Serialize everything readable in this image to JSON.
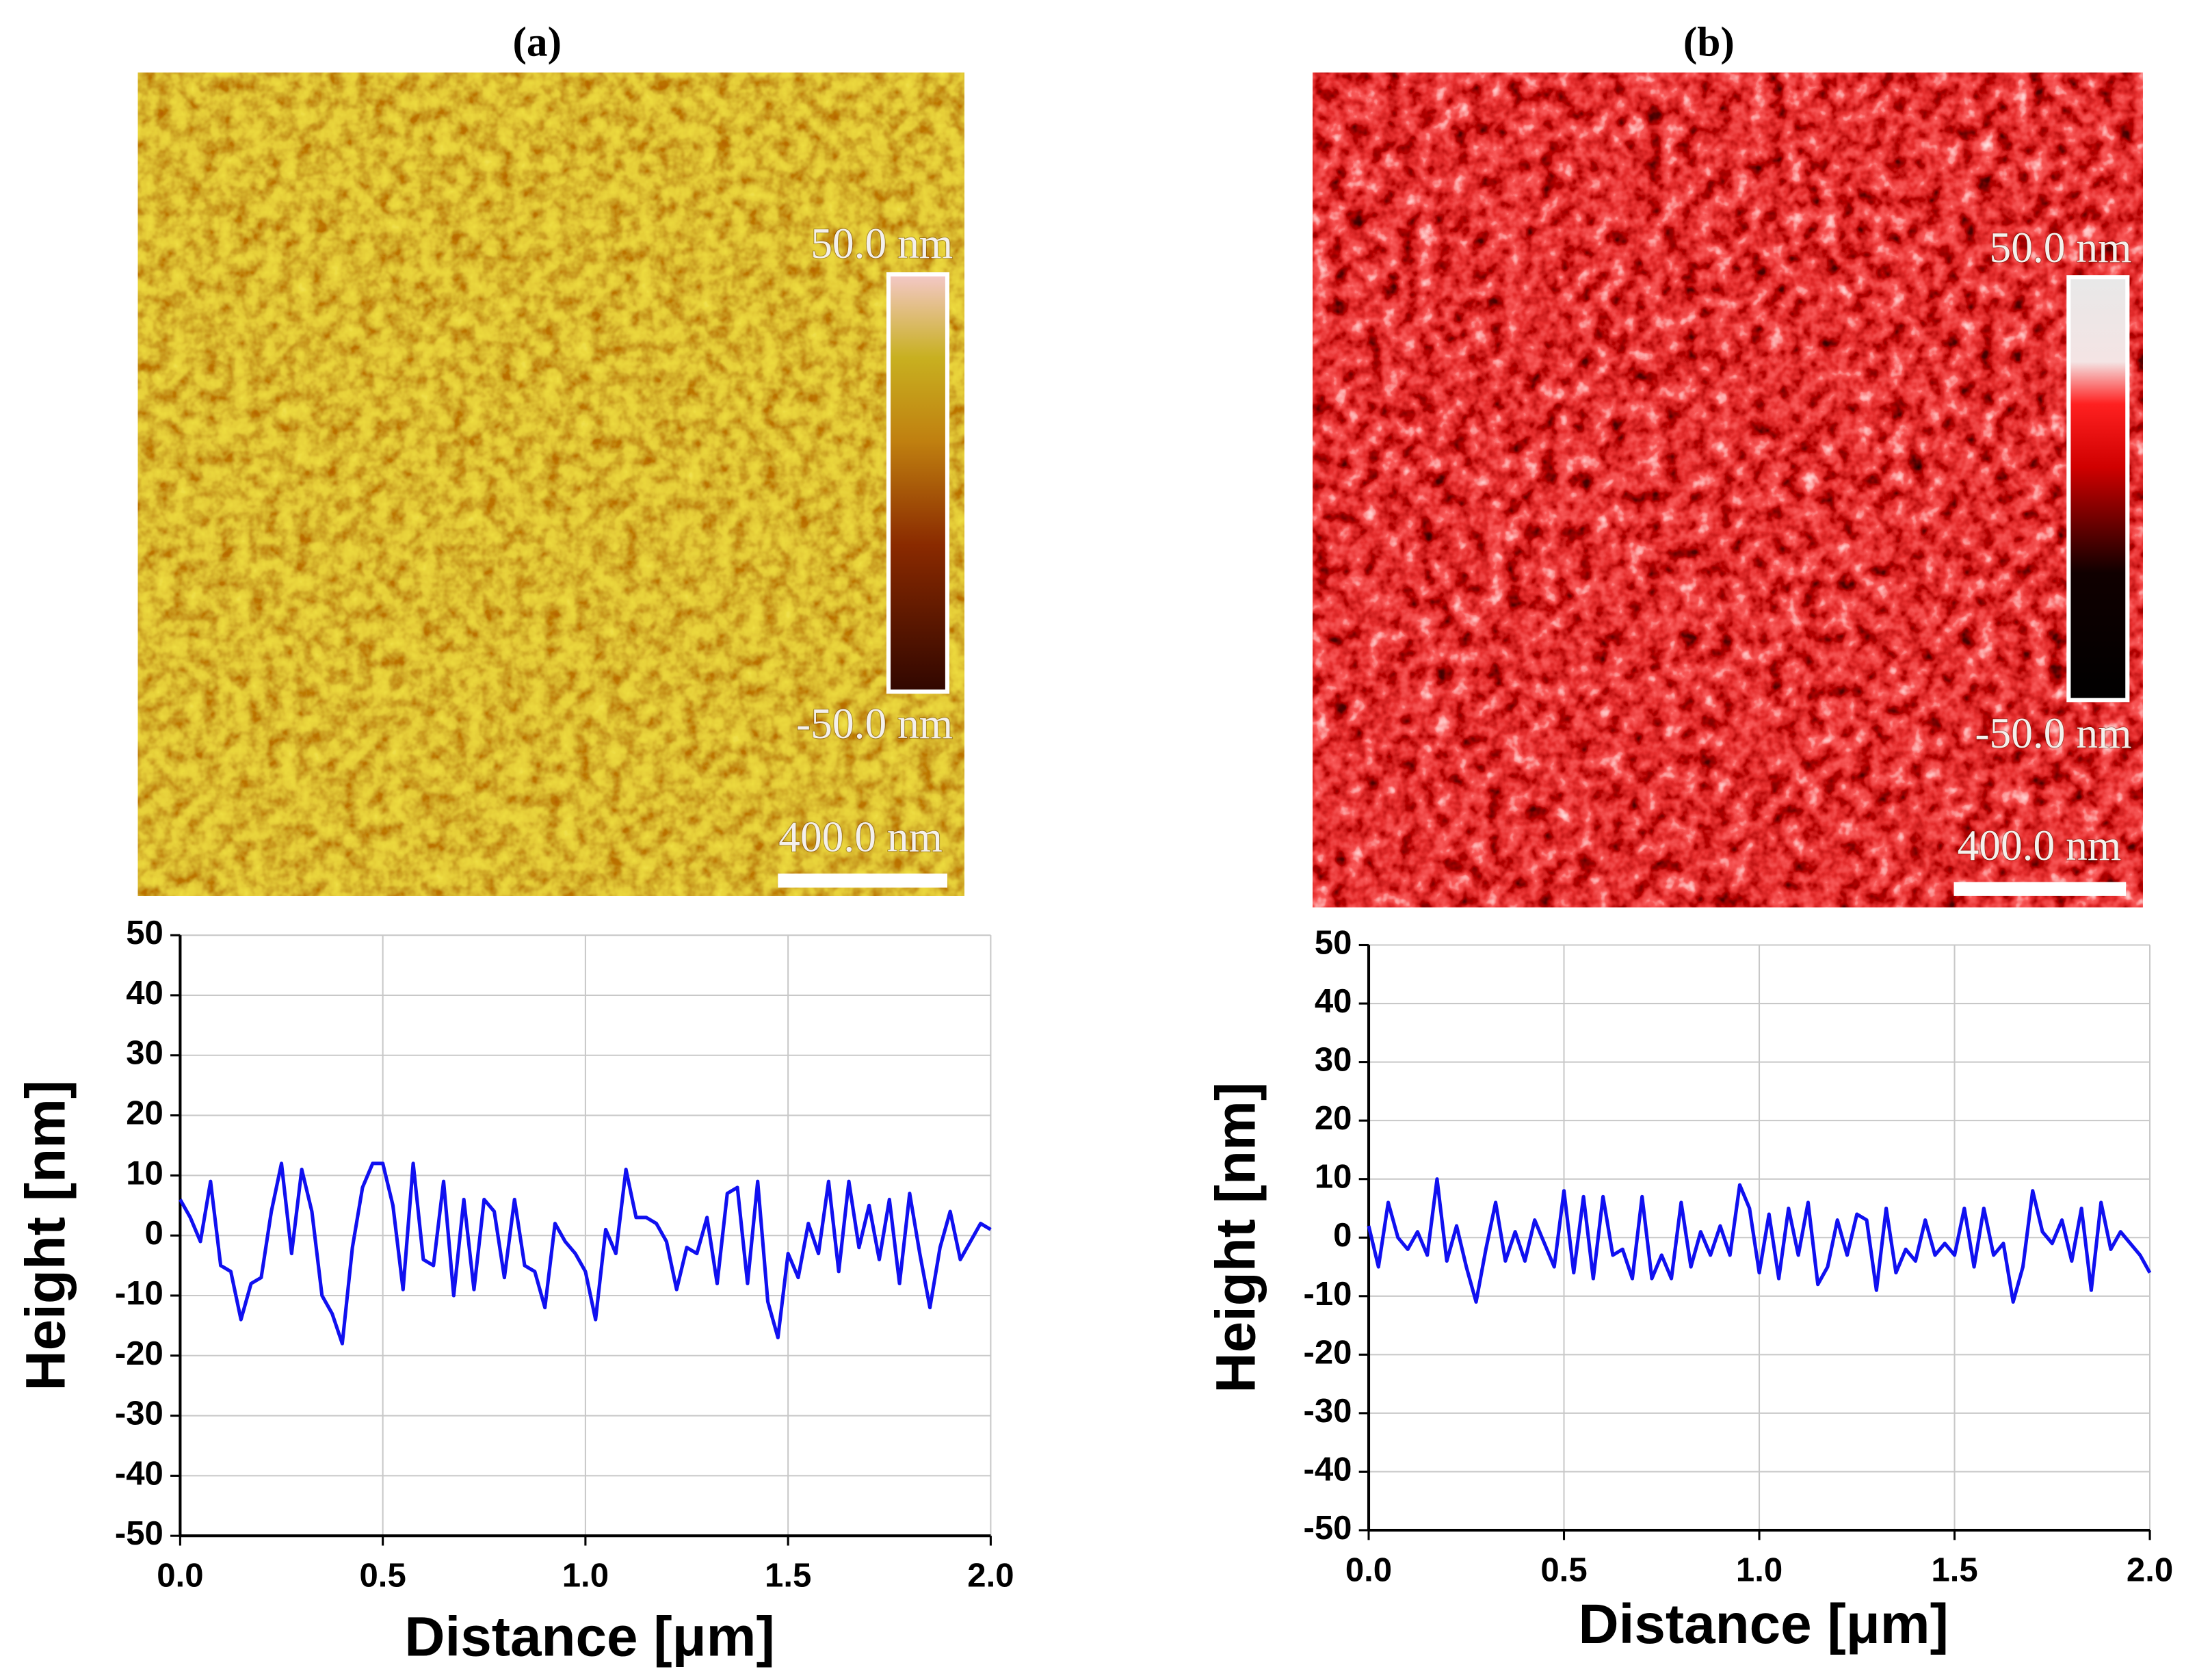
{
  "images": [
    {
      "label": "(a)",
      "scale_max": "50.0 nm",
      "scale_min": "-50.0 nm",
      "scale_bar": "400.0 nm"
    },
    {
      "label": "(b)",
      "scale_max": "50.0 nm",
      "scale_min": "-50.0 nm",
      "scale_bar": "400.0 nm"
    }
  ],
  "chart_data": [
    {
      "type": "line",
      "xlabel": "Distance [μm]",
      "ylabel": "Height [nm]",
      "color": "#1010f0",
      "grid": true,
      "xlim": [
        0,
        2
      ],
      "ylim": [
        -50,
        50
      ],
      "xticks": [
        {
          "value": 0,
          "label": "0.0"
        },
        0.5,
        {
          "value": 1,
          "label": "1.0"
        },
        1.5,
        {
          "value": 2,
          "label": "2.0"
        }
      ],
      "yticks": [
        -50,
        -40,
        -30,
        -20,
        -10,
        0,
        10,
        20,
        30,
        40,
        50
      ],
      "x": [
        0,
        0.025,
        0.05,
        0.075,
        0.1,
        0.125,
        0.15,
        0.175,
        0.2,
        0.225,
        0.25,
        0.275,
        0.3,
        0.325,
        0.35,
        0.375,
        0.4,
        0.425,
        0.45,
        0.475,
        0.5,
        0.525,
        0.55,
        0.575,
        0.6,
        0.625,
        0.65,
        0.675,
        0.7,
        0.725,
        0.75,
        0.775,
        0.8,
        0.825,
        0.85,
        0.875,
        0.9,
        0.925,
        0.95,
        0.975,
        1,
        1.025,
        1.05,
        1.075,
        1.1,
        1.125,
        1.15,
        1.175,
        1.2,
        1.225,
        1.25,
        1.275,
        1.3,
        1.325,
        1.35,
        1.375,
        1.4,
        1.425,
        1.45,
        1.475,
        1.5,
        1.525,
        1.55,
        1.575,
        1.6,
        1.625,
        1.65,
        1.675,
        1.7,
        1.725,
        1.75,
        1.775,
        1.8,
        1.825,
        1.85,
        1.875,
        1.9,
        1.925,
        1.95,
        1.975,
        2
      ],
      "values": [
        6,
        3,
        -1,
        9,
        -5,
        -6,
        -14,
        -8,
        -7,
        4,
        12,
        -3,
        11,
        4,
        -10,
        -13,
        -18,
        -2,
        8,
        12,
        12,
        5,
        -9,
        12,
        -4,
        -5,
        9,
        -10,
        6,
        -9,
        6,
        4,
        -7,
        6,
        -5,
        -6,
        -12,
        2,
        -1,
        -3,
        -6,
        -14,
        1,
        -3,
        11,
        3,
        3,
        2,
        -1,
        -9,
        -2,
        -3,
        3,
        -8,
        7,
        8,
        -8,
        9,
        -11,
        -17,
        -3,
        -7,
        2,
        -3,
        9,
        -6,
        9,
        -2,
        5,
        -4,
        6,
        -8,
        7,
        -3,
        -12,
        -2,
        4,
        -4,
        -1,
        2,
        1
      ]
    },
    {
      "type": "line",
      "xlabel": "Distance [μm]",
      "ylabel": "Height [nm]",
      "color": "#1010f0",
      "grid": true,
      "xlim": [
        0,
        2
      ],
      "ylim": [
        -50,
        50
      ],
      "xticks": [
        {
          "value": 0,
          "label": "0.0"
        },
        0.5,
        {
          "value": 1,
          "label": "1.0"
        },
        1.5,
        {
          "value": 2,
          "label": "2.0"
        }
      ],
      "yticks": [
        -50,
        -40,
        -30,
        -20,
        -10,
        0,
        10,
        20,
        30,
        40,
        50
      ],
      "x": [
        0,
        0.025,
        0.05,
        0.075,
        0.1,
        0.125,
        0.15,
        0.175,
        0.2,
        0.225,
        0.25,
        0.275,
        0.3,
        0.325,
        0.35,
        0.375,
        0.4,
        0.425,
        0.45,
        0.475,
        0.5,
        0.525,
        0.55,
        0.575,
        0.6,
        0.625,
        0.65,
        0.675,
        0.7,
        0.725,
        0.75,
        0.775,
        0.8,
        0.825,
        0.85,
        0.875,
        0.9,
        0.925,
        0.95,
        0.975,
        1,
        1.025,
        1.05,
        1.075,
        1.1,
        1.125,
        1.15,
        1.175,
        1.2,
        1.225,
        1.25,
        1.275,
        1.3,
        1.325,
        1.35,
        1.375,
        1.4,
        1.425,
        1.45,
        1.475,
        1.5,
        1.525,
        1.55,
        1.575,
        1.6,
        1.625,
        1.65,
        1.675,
        1.7,
        1.725,
        1.75,
        1.775,
        1.8,
        1.825,
        1.85,
        1.875,
        1.9,
        1.925,
        1.95,
        1.975,
        2
      ],
      "values": [
        2,
        -5,
        6,
        0,
        -2,
        1,
        -3,
        10,
        -4,
        2,
        -5,
        -11,
        -2,
        6,
        -4,
        1,
        -4,
        3,
        -1,
        -5,
        8,
        -6,
        7,
        -7,
        7,
        -3,
        -2,
        -7,
        7,
        -7,
        -3,
        -7,
        6,
        -5,
        1,
        -3,
        2,
        -3,
        9,
        5,
        -6,
        4,
        -7,
        5,
        -3,
        6,
        -8,
        -5,
        3,
        -3,
        4,
        3,
        -9,
        5,
        -6,
        -2,
        -4,
        3,
        -3,
        -1,
        -3,
        5,
        -5,
        5,
        -3,
        -1,
        -11,
        -5,
        8,
        1,
        -1,
        3,
        -4,
        5,
        -9,
        6,
        -2,
        1,
        -1,
        -3,
        -6
      ]
    }
  ]
}
